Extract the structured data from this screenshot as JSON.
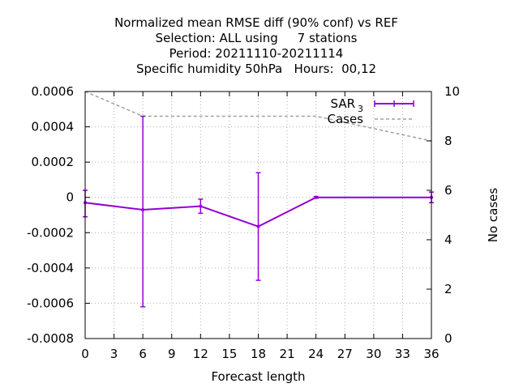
{
  "chart_data": {
    "type": "line",
    "title_lines": [
      "Normalized mean RMSE diff (90% conf) vs REF",
      "Selection: ALL using     7 stations",
      "Period: 20211110-20211114",
      "Specific humidity 50hPa   Hours:  00,12"
    ],
    "xlabel": "Forecast length",
    "y2label": "No cases",
    "xlim": [
      0,
      36
    ],
    "ylim": [
      -0.0008,
      0.0006
    ],
    "y2lim": [
      0,
      10
    ],
    "x_ticks": [
      0,
      3,
      6,
      9,
      12,
      15,
      18,
      21,
      24,
      27,
      30,
      33,
      36
    ],
    "x_tick_labels": [
      "0",
      "3",
      "6",
      "9",
      "12",
      "15",
      "18",
      "21",
      "24",
      "27",
      "30",
      "33",
      "36"
    ],
    "y_ticks": [
      0.0006,
      0.0004,
      0.0002,
      0,
      -0.0002,
      -0.0004,
      -0.0006,
      -0.0008
    ],
    "y_tick_labels": [
      "0.0006",
      "0.0004",
      "0.0002",
      "0",
      "-0.0002",
      "-0.0004",
      "-0.0006",
      "-0.0008"
    ],
    "y2_ticks": [
      10,
      8,
      6,
      4,
      2,
      0
    ],
    "y2_tick_labels": [
      "10",
      "8",
      "6",
      "4",
      "2",
      "0"
    ],
    "grid": true,
    "legend_position": "top-right",
    "series": [
      {
        "name": "SAR",
        "name_subscript": "3",
        "color": "#9400d3",
        "style": "line-errorbars",
        "x": [
          0,
          6,
          12,
          18,
          24,
          36
        ],
        "values": [
          -3e-05,
          -7e-05,
          -5e-05,
          -0.000165,
          0.0,
          0.0
        ],
        "err_low": [
          -0.00011,
          -0.00062,
          -9e-05,
          -0.00047,
          -5e-06,
          -3e-05
        ],
        "err_high": [
          4e-05,
          0.00046,
          -1e-05,
          0.00014,
          5e-06,
          3e-05
        ]
      },
      {
        "name": "Cases",
        "color": "#a0a0a0",
        "style": "dashed",
        "axis": "y2",
        "x": [
          0,
          6,
          12,
          18,
          24,
          36
        ],
        "values": [
          10,
          9,
          9,
          9,
          9,
          8
        ]
      }
    ]
  }
}
